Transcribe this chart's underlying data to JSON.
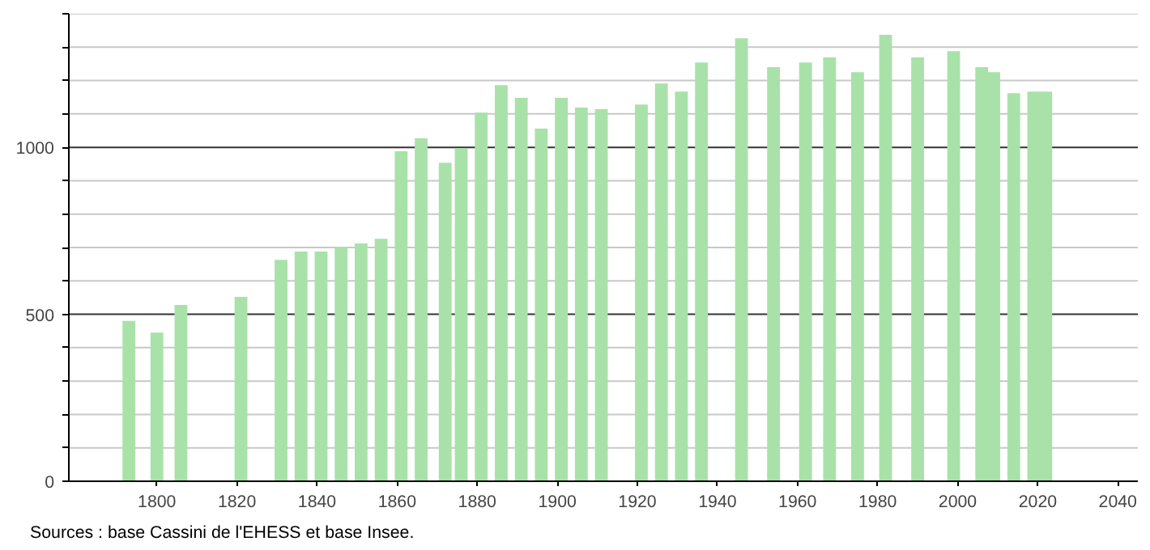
{
  "chart_data": {
    "type": "bar",
    "color": "#a8e2a8",
    "x": [
      1793,
      1800,
      1806,
      1821,
      1831,
      1836,
      1841,
      1846,
      1851,
      1856,
      1861,
      1866,
      1872,
      1876,
      1881,
      1886,
      1891,
      1896,
      1901,
      1906,
      1911,
      1921,
      1926,
      1931,
      1936,
      1946,
      1954,
      1962,
      1968,
      1975,
      1982,
      1990,
      1999,
      2006,
      2009,
      2014,
      2019,
      2022
    ],
    "values": [
      480,
      445,
      528,
      552,
      663,
      688,
      688,
      702,
      712,
      726,
      988,
      1027,
      954,
      998,
      1104,
      1186,
      1148,
      1056,
      1148,
      1119,
      1114,
      1128,
      1191,
      1167,
      1254,
      1327,
      1240,
      1254,
      1269,
      1225,
      1337,
      1269,
      1288,
      1240,
      1225,
      1162,
      1167,
      1167
    ],
    "xlim": [
      1778,
      2045
    ],
    "ylim": [
      0,
      1400
    ],
    "xticks": [
      1800,
      1820,
      1840,
      1860,
      1880,
      1900,
      1920,
      1940,
      1960,
      1980,
      2000,
      2020,
      2040
    ],
    "yticks": [
      0,
      {
        "value": 100,
        "label": null
      },
      {
        "value": 200,
        "label": null
      },
      {
        "value": 300,
        "label": null
      },
      {
        "value": 400,
        "label": null
      },
      500,
      {
        "value": 600,
        "label": null
      },
      {
        "value": 700,
        "label": null
      },
      {
        "value": 800,
        "label": null
      },
      {
        "value": 900,
        "label": null
      },
      1000,
      {
        "value": 1100,
        "label": null
      },
      {
        "value": 1200,
        "label": null
      },
      {
        "value": 1300,
        "label": null
      },
      {
        "value": 1400,
        "label": null
      }
    ],
    "grid": "y",
    "annotations": [
      "Sources : base Cassini de l'EHESS et base Insee."
    ]
  }
}
